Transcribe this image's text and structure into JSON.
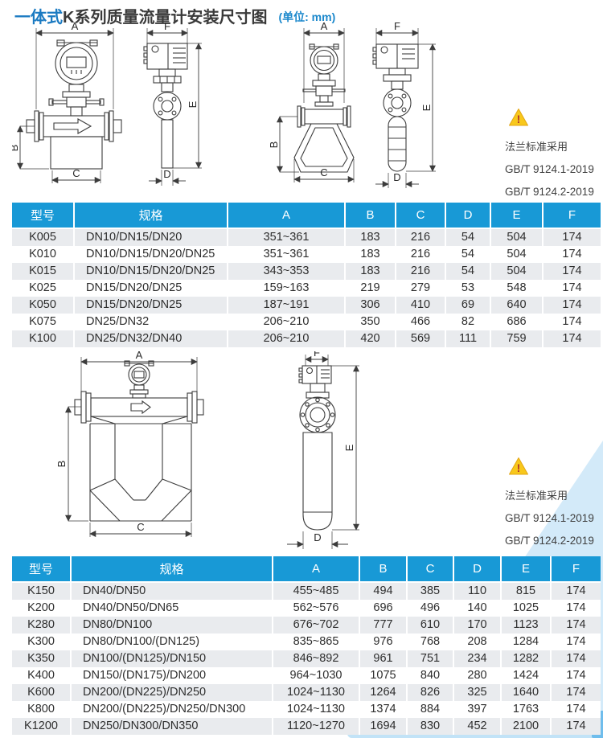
{
  "page": {
    "title_highlight": "一体式",
    "title_main": "K系列质量流量计安装尺寸图",
    "title_unit": "(单位: mm)"
  },
  "colors": {
    "header_blue": "#1899d6",
    "row_alt_gray": "#e9ebee",
    "title_blue": "#1c7bc2",
    "warning_yellow": "#f8c81c",
    "deco_light_blue": "#d3eaf9"
  },
  "dims": {
    "a": "A",
    "b": "B",
    "c": "C",
    "d": "D",
    "e": "E",
    "f": "F"
  },
  "flange_note": {
    "title": "法兰标准采用",
    "std1": "GB/T 9124.1-2019",
    "std2": "GB/T 9124.2-2019",
    "warning_icon_glyph": "!"
  },
  "table1": {
    "headers": [
      "型号",
      "规格",
      "A",
      "B",
      "C",
      "D",
      "E",
      "F"
    ],
    "rows": [
      [
        "K005",
        "DN10/DN15/DN20",
        "351~361",
        "183",
        "216",
        "54",
        "504",
        "174"
      ],
      [
        "K010",
        "DN10/DN15/DN20/DN25",
        "351~361",
        "183",
        "216",
        "54",
        "504",
        "174"
      ],
      [
        "K015",
        "DN10/DN15/DN20/DN25",
        "343~353",
        "183",
        "216",
        "54",
        "504",
        "174"
      ],
      [
        "K025",
        "DN15/DN20/DN25",
        "159~163",
        "219",
        "279",
        "53",
        "548",
        "174"
      ],
      [
        "K050",
        "DN15/DN20/DN25",
        "187~191",
        "306",
        "410",
        "69",
        "640",
        "174"
      ],
      [
        "K075",
        "DN25/DN32",
        "206~210",
        "350",
        "466",
        "82",
        "686",
        "174"
      ],
      [
        "K100",
        "DN25/DN32/DN40",
        "206~210",
        "420",
        "569",
        "111",
        "759",
        "174"
      ]
    ]
  },
  "table2": {
    "headers": [
      "型号",
      "规格",
      "A",
      "B",
      "C",
      "D",
      "E",
      "F"
    ],
    "rows": [
      [
        "K150",
        "DN40/DN50",
        "455~485",
        "494",
        "385",
        "110",
        "815",
        "174"
      ],
      [
        "K200",
        "DN40/DN50/DN65",
        "562~576",
        "696",
        "496",
        "140",
        "1025",
        "174"
      ],
      [
        "K280",
        "DN80/DN100",
        "676~702",
        "777",
        "610",
        "170",
        "1123",
        "174"
      ],
      [
        "K300",
        "DN80/DN100/(DN125)",
        "835~865",
        "976",
        "768",
        "208",
        "1284",
        "174"
      ],
      [
        "K350",
        "DN100/(DN125)/DN150",
        "846~892",
        "961",
        "751",
        "234",
        "1282",
        "174"
      ],
      [
        "K400",
        "DN150/(DN175)/DN200",
        "964~1030",
        "1075",
        "840",
        "280",
        "1424",
        "174"
      ],
      [
        "K600",
        "DN200/(DN225)/DN250",
        "1024~1130",
        "1264",
        "826",
        "325",
        "1640",
        "174"
      ],
      [
        "K800",
        "DN200/(DN225)/DN250/DN300",
        "1024~1130",
        "1374",
        "884",
        "397",
        "1763",
        "174"
      ],
      [
        "K1200",
        "DN250/DN300/DN350",
        "1120~1270",
        "1694",
        "830",
        "452",
        "2100",
        "174"
      ]
    ]
  }
}
